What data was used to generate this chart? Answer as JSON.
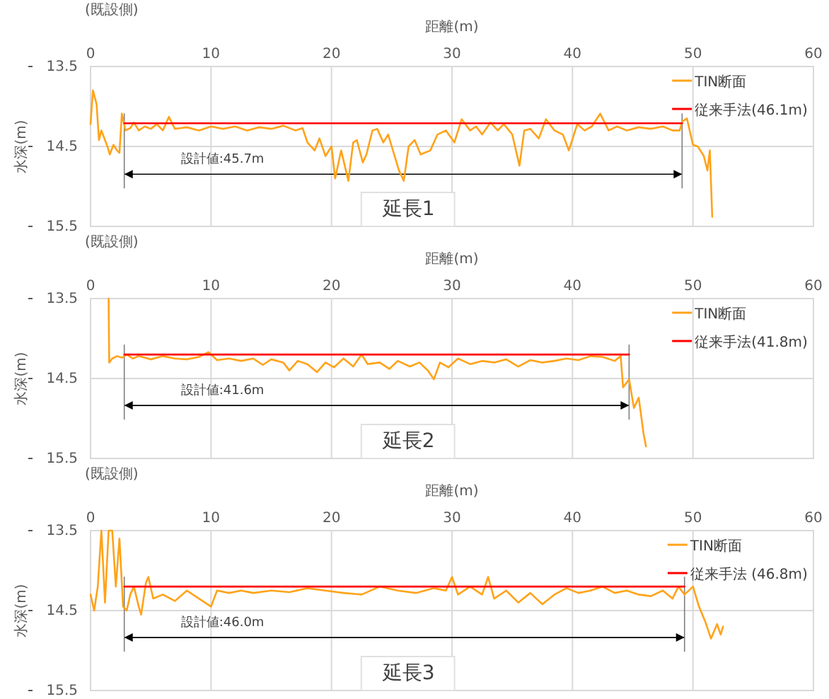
{
  "chart_data": [
    {
      "type": "line",
      "xlabel": "距離(m)",
      "ylabel": "水深(m)",
      "xlim": [
        0,
        60
      ],
      "xticks": [
        0,
        10,
        20,
        30,
        40,
        50,
        60
      ],
      "ylim": [
        15.5,
        13.5
      ],
      "yticks": [
        13.5,
        14.5,
        15.5
      ],
      "grid": true,
      "legend": "top right",
      "annotations": [
        "(既設側)",
        "設計値:45.7m",
        "延長1"
      ],
      "series": [
        {
          "name": "TIN断面",
          "color": "#ffa31a",
          "x": [
            0,
            0.2,
            0.5,
            0.7,
            0.9,
            1.1,
            1.4,
            1.6,
            1.9,
            2.2,
            2.4,
            2.6,
            2.9,
            3.3,
            3.6,
            4,
            4.5,
            5,
            5.5,
            6,
            6.5,
            7,
            8,
            9,
            10,
            11,
            12,
            13,
            14,
            15,
            16,
            17,
            17.6,
            18,
            18.6,
            19,
            19.5,
            20,
            20.3,
            20.8,
            21.4,
            21.8,
            22.1,
            22.6,
            22.9,
            23.4,
            23.8,
            24.3,
            24.7,
            25.2,
            25.6,
            26,
            26.4,
            26.9,
            27.4,
            28.2,
            28.8,
            29.5,
            30.2,
            30.8,
            31.5,
            32,
            32.5,
            33.2,
            33.8,
            34.3,
            35,
            35.6,
            36,
            36.5,
            37.2,
            37.8,
            38.5,
            39.2,
            39.7,
            40.4,
            41,
            41.6,
            42.3,
            43,
            43.7,
            44.5,
            45.5,
            46.5,
            47.5,
            48.3,
            48.9,
            49.1,
            49.5,
            50,
            50.4,
            50.9,
            51.2,
            51.4,
            51.6
          ],
          "values": [
            14.22,
            13.8,
            13.97,
            14.42,
            14.3,
            14.38,
            14.5,
            14.6,
            14.48,
            14.55,
            14.58,
            14.09,
            14.3,
            14.27,
            14.2,
            14.3,
            14.25,
            14.28,
            14.22,
            14.3,
            14.13,
            14.28,
            14.26,
            14.3,
            14.25,
            14.28,
            14.25,
            14.3,
            14.26,
            14.28,
            14.24,
            14.3,
            14.27,
            14.45,
            14.55,
            14.4,
            14.62,
            14.5,
            14.9,
            14.55,
            14.93,
            14.45,
            14.42,
            14.7,
            14.6,
            14.3,
            14.28,
            14.45,
            14.35,
            14.6,
            14.8,
            14.93,
            14.5,
            14.42,
            14.6,
            14.55,
            14.35,
            14.3,
            14.45,
            14.16,
            14.3,
            14.25,
            14.35,
            14.2,
            14.3,
            14.22,
            14.35,
            14.74,
            14.3,
            14.28,
            14.4,
            14.16,
            14.3,
            14.35,
            14.55,
            14.22,
            14.3,
            14.25,
            14.09,
            14.3,
            14.25,
            14.3,
            14.26,
            14.28,
            14.25,
            14.3,
            14.3,
            14.19,
            14.15,
            14.48,
            14.5,
            14.62,
            14.8,
            14.55,
            15.38
          ]
        },
        {
          "name": "従来手法(46.1m)",
          "color": "#ff0000",
          "x": [
            2.8,
            49.1
          ],
          "values": [
            14.21,
            14.21
          ]
        }
      ]
    },
    {
      "type": "line",
      "xlabel": "距離(m)",
      "ylabel": "水深(m)",
      "xlim": [
        0,
        60
      ],
      "xticks": [
        0,
        10,
        20,
        30,
        40,
        50,
        60
      ],
      "ylim": [
        15.5,
        13.5
      ],
      "yticks": [
        13.5,
        14.5,
        15.5
      ],
      "grid": true,
      "legend": "top right",
      "annotations": [
        "(既設側)",
        "設計値:41.6m",
        "延長2"
      ],
      "series": [
        {
          "name": "TIN断面",
          "color": "#ffa31a",
          "x": [
            1.5,
            1.55,
            1.8,
            2.2,
            2.6,
            3,
            3.5,
            4,
            5,
            6,
            7,
            8,
            9,
            9.8,
            10.5,
            11.5,
            12.5,
            13.5,
            14.3,
            15,
            16,
            16.5,
            17.2,
            18,
            18.8,
            19.5,
            20.2,
            21,
            21.8,
            22.5,
            23,
            24,
            24.8,
            25.5,
            26.5,
            27.3,
            28,
            28.5,
            29,
            29.7,
            30.5,
            31.5,
            32.5,
            33.5,
            34.5,
            35.5,
            36.5,
            37.5,
            38.5,
            39.5,
            40.5,
            41.5,
            42.5,
            43.5,
            44,
            44.2,
            44.7,
            45.1,
            45.5,
            45.9,
            46.1
          ],
          "values": [
            13.5,
            14.3,
            14.25,
            14.22,
            14.24,
            14.2,
            14.25,
            14.22,
            14.26,
            14.22,
            14.25,
            14.26,
            14.23,
            14.17,
            14.27,
            14.25,
            14.28,
            14.25,
            14.33,
            14.26,
            14.3,
            14.4,
            14.28,
            14.32,
            14.42,
            14.3,
            14.36,
            14.25,
            14.35,
            14.2,
            14.32,
            14.3,
            14.38,
            14.28,
            14.35,
            14.3,
            14.4,
            14.51,
            14.3,
            14.36,
            14.25,
            14.32,
            14.28,
            14.3,
            14.26,
            14.35,
            14.27,
            14.3,
            14.28,
            14.25,
            14.27,
            14.22,
            14.23,
            14.28,
            14.22,
            14.61,
            14.51,
            14.87,
            14.74,
            15.19,
            15.35
          ]
        },
        {
          "name": "従来手法(41.8m)",
          "color": "#ff0000",
          "x": [
            2.8,
            44.7
          ],
          "values": [
            14.2,
            14.2
          ]
        }
      ]
    },
    {
      "type": "line",
      "xlabel": "距離(m)",
      "ylabel": "水深(m)",
      "xlim": [
        0,
        60
      ],
      "xticks": [
        0,
        10,
        20,
        30,
        40,
        50,
        60
      ],
      "ylim": [
        15.5,
        13.5
      ],
      "yticks": [
        13.5,
        14.5,
        15.5
      ],
      "grid": true,
      "legend": "top right",
      "annotations": [
        "(既設側)",
        "設計値:46.0m",
        "延長3"
      ],
      "series": [
        {
          "name": "TIN断面",
          "color": "#ffa31a",
          "x": [
            0,
            0.3,
            0.6,
            0.9,
            1.2,
            1.5,
            1.8,
            2.1,
            2.4,
            2.7,
            3,
            3.3,
            3.6,
            4,
            4.2,
            4.6,
            4.8,
            5.2,
            6,
            7,
            8,
            9,
            10,
            10.5,
            11.5,
            12.5,
            13.5,
            15,
            16.5,
            18,
            19.5,
            21,
            22.5,
            24,
            25.5,
            27,
            28.5,
            29.5,
            30,
            30.5,
            31.5,
            32.5,
            33,
            33.5,
            34.5,
            35.5,
            36.5,
            37.5,
            38.5,
            39.5,
            40.5,
            41.5,
            42.5,
            43.5,
            44.5,
            45.5,
            46.5,
            47.5,
            48.3,
            48.8,
            49.3,
            50,
            50.5,
            51,
            51.5,
            52,
            52.3,
            52.5
          ],
          "values": [
            14.3,
            14.5,
            14.2,
            13.5,
            14.4,
            13.5,
            13.5,
            14.2,
            13.6,
            14.45,
            14.5,
            14.3,
            14.2,
            14.45,
            14.55,
            14.15,
            14.08,
            14.35,
            14.3,
            14.38,
            14.25,
            14.35,
            14.45,
            14.25,
            14.28,
            14.25,
            14.28,
            14.25,
            14.27,
            14.22,
            14.25,
            14.28,
            14.3,
            14.2,
            14.25,
            14.28,
            14.22,
            14.25,
            14.08,
            14.3,
            14.2,
            14.3,
            14.08,
            14.35,
            14.25,
            14.4,
            14.28,
            14.42,
            14.3,
            14.22,
            14.28,
            14.25,
            14.2,
            14.28,
            14.25,
            14.3,
            14.32,
            14.25,
            14.35,
            14.2,
            14.3,
            14.2,
            14.45,
            14.63,
            14.85,
            14.67,
            14.8,
            14.7
          ]
        },
        {
          "name": "従来手法 (46.8m)",
          "color": "#ff0000",
          "x": [
            2.8,
            49.3
          ],
          "values": [
            14.2,
            14.2
          ]
        }
      ]
    }
  ]
}
